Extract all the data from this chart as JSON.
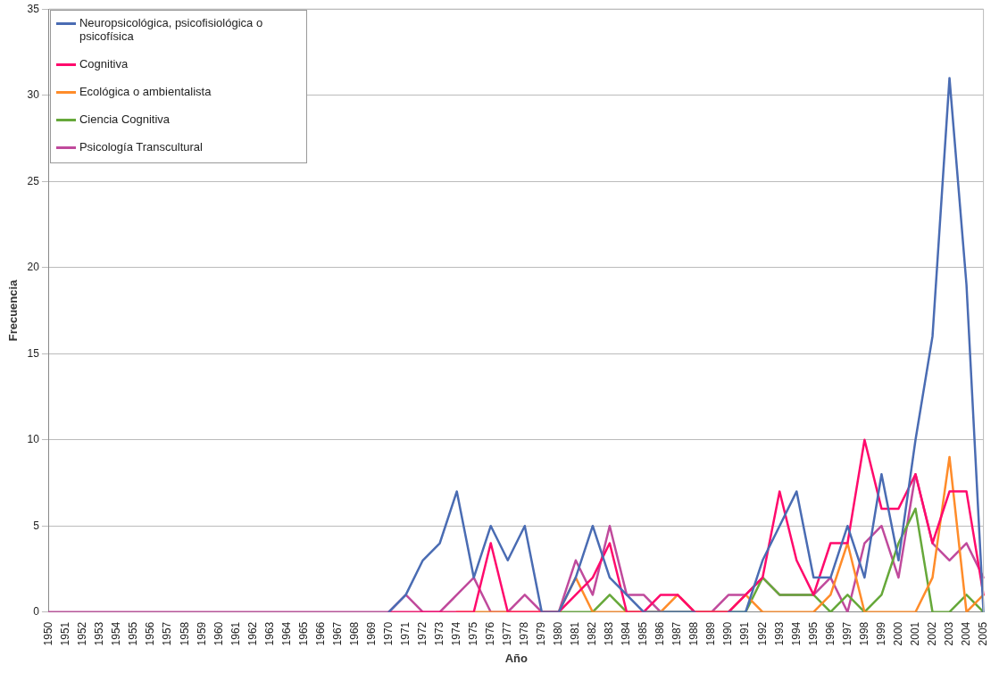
{
  "chart_data": {
    "type": "line",
    "xlabel": "Año",
    "ylabel": "Frecuencia",
    "categories": [
      "1950",
      "1951",
      "1952",
      "1953",
      "1954",
      "1955",
      "1956",
      "1957",
      "1958",
      "1959",
      "1960",
      "1961",
      "1962",
      "1963",
      "1964",
      "1965",
      "1966",
      "1967",
      "1968",
      "1969",
      "1970",
      "1971",
      "1972",
      "1973",
      "1974",
      "1975",
      "1976",
      "1977",
      "1978",
      "1979",
      "1980",
      "1981",
      "1982",
      "1983",
      "1984",
      "1985",
      "1986",
      "1987",
      "1988",
      "1989",
      "1990",
      "1991",
      "1992",
      "1993",
      "1994",
      "1995",
      "1996",
      "1997",
      "1998",
      "1999",
      "2000",
      "2001",
      "2002",
      "2003",
      "2004",
      "2005"
    ],
    "series": [
      {
        "name": "Neuropsicológica, psicofisiológica o psicofísica",
        "color": "#4a6cb3",
        "values": [
          null,
          null,
          null,
          null,
          null,
          null,
          null,
          null,
          null,
          null,
          null,
          null,
          null,
          null,
          null,
          null,
          null,
          null,
          null,
          null,
          0,
          1,
          3,
          4,
          7,
          2,
          5,
          3,
          5,
          0,
          0,
          2,
          5,
          2,
          1,
          0,
          0,
          0,
          0,
          null,
          0,
          0,
          3,
          5,
          7,
          2,
          2,
          5,
          2,
          8,
          3,
          10,
          16,
          31,
          19,
          0
        ]
      },
      {
        "name": "Cognitiva",
        "color": "#ff0a6c",
        "values": [
          null,
          null,
          null,
          null,
          null,
          null,
          null,
          null,
          null,
          null,
          null,
          null,
          null,
          null,
          null,
          null,
          null,
          null,
          null,
          null,
          0,
          0,
          0,
          0,
          0,
          0,
          4,
          0,
          0,
          0,
          0,
          1,
          2,
          4,
          0,
          0,
          1,
          1,
          0,
          0,
          0,
          1,
          2,
          7,
          3,
          1,
          4,
          4,
          10,
          6,
          6,
          8,
          4,
          7,
          7,
          1
        ]
      },
      {
        "name": "Ecológica o ambientalista",
        "color": "#ff8c2a",
        "values": [
          null,
          null,
          null,
          null,
          null,
          null,
          null,
          null,
          null,
          null,
          null,
          null,
          null,
          null,
          null,
          null,
          null,
          null,
          null,
          null,
          null,
          null,
          null,
          null,
          0,
          0,
          0,
          0,
          0,
          0,
          0,
          2,
          0,
          0,
          0,
          0,
          0,
          1,
          0,
          0,
          0,
          1,
          0,
          0,
          0,
          0,
          1,
          4,
          0,
          0,
          0,
          0,
          2,
          9,
          0,
          1
        ]
      },
      {
        "name": "Ciencia Cognitiva",
        "color": "#66a83a",
        "values": [
          null,
          null,
          null,
          null,
          null,
          null,
          null,
          null,
          null,
          null,
          null,
          null,
          null,
          null,
          null,
          null,
          null,
          null,
          null,
          null,
          null,
          null,
          null,
          null,
          null,
          null,
          null,
          null,
          null,
          0,
          0,
          0,
          0,
          1,
          0,
          0,
          0,
          0,
          0,
          0,
          0,
          0,
          2,
          1,
          1,
          1,
          0,
          1,
          0,
          1,
          4,
          6,
          0,
          0,
          1,
          0
        ]
      },
      {
        "name": "Psicología Transcultural",
        "color": "#c04a9c",
        "values": [
          0,
          0,
          0,
          0,
          0,
          0,
          0,
          0,
          0,
          0,
          0,
          0,
          0,
          0,
          0,
          0,
          0,
          0,
          0,
          0,
          0,
          1,
          0,
          0,
          1,
          2,
          0,
          0,
          1,
          0,
          0,
          3,
          1,
          5,
          1,
          1,
          0,
          0,
          0,
          0,
          1,
          1,
          2,
          1,
          1,
          1,
          2,
          0,
          4,
          5,
          2,
          8,
          4,
          3,
          4,
          2
        ]
      }
    ],
    "ylim": [
      0,
      35
    ],
    "yticks": [
      0,
      5,
      10,
      15,
      20,
      25,
      30,
      35
    ],
    "grid": "y",
    "legend": "top left",
    "marker": "none",
    "line_style": "solid"
  }
}
